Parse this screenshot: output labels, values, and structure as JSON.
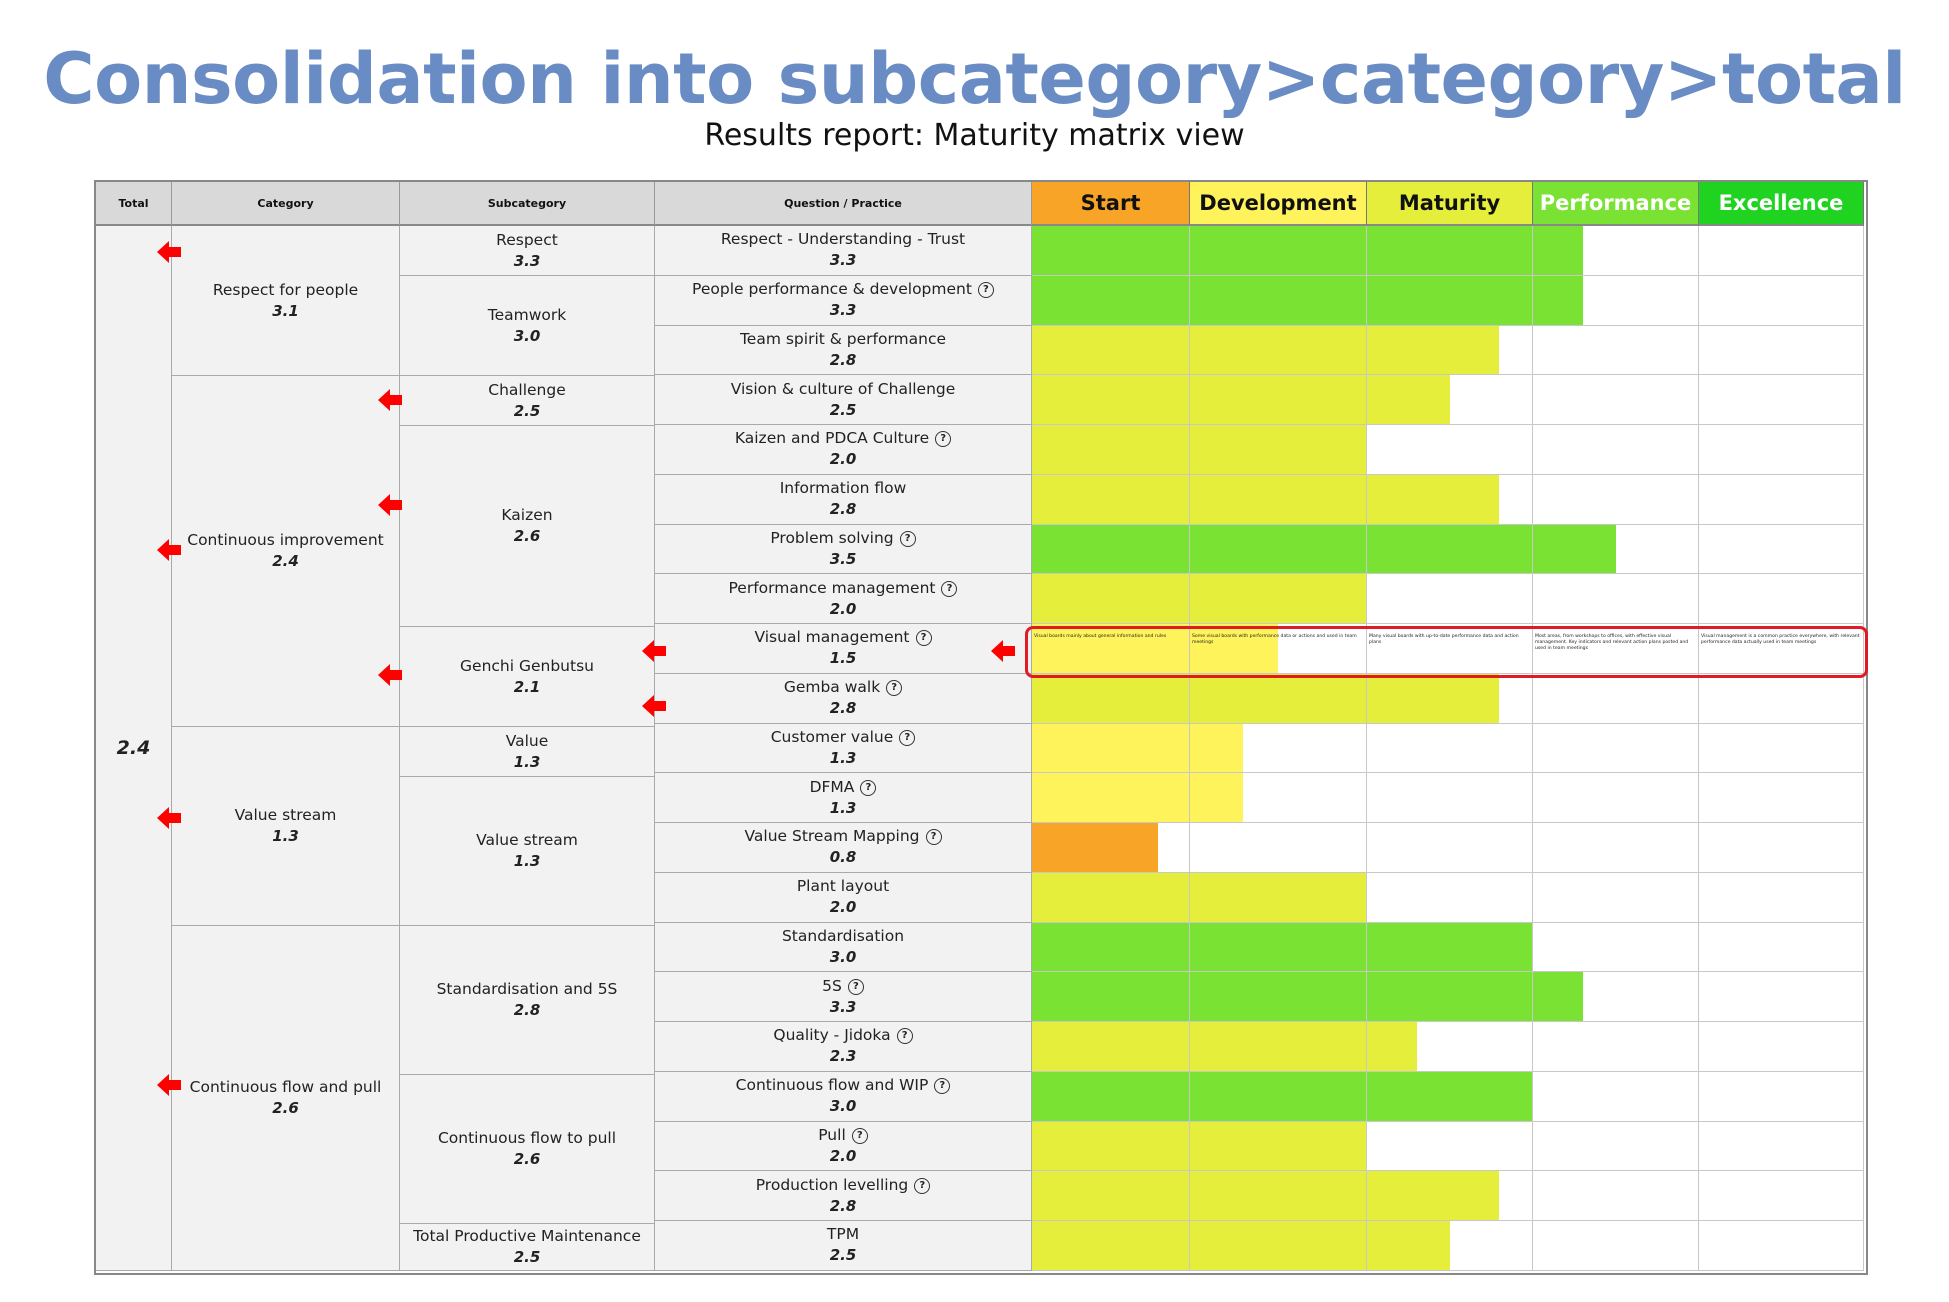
{
  "header": {
    "title": "Consolidation into subcategory>category>total",
    "subtitle": "Results report: Maturity matrix view"
  },
  "table": {
    "columns": {
      "total": "Total",
      "category": "Category",
      "subcategory": "Subcategory",
      "question": "Question / Practice"
    },
    "levels": [
      {
        "label": "Start",
        "color": "#f7a427",
        "text_color": "#111111"
      },
      {
        "label": "Development",
        "color": "#fff35c",
        "text_color": "#111111"
      },
      {
        "label": "Maturity",
        "color": "#e5ef3b",
        "text_color": "#111111"
      },
      {
        "label": "Performance",
        "color": "#79e232",
        "text_color": "#ffffff"
      },
      {
        "label": "Excellence",
        "color": "#20d320",
        "text_color": "#ffffff"
      }
    ],
    "total": {
      "score": "2.4"
    },
    "categories": [
      {
        "name": "Respect for people",
        "score": "3.1"
      },
      {
        "name": "Continuous improvement",
        "score": "2.4"
      },
      {
        "name": "Value stream",
        "score": "1.3"
      },
      {
        "name": "Continuous flow and pull",
        "score": "2.6"
      }
    ],
    "subcategories": [
      {
        "name": "Respect",
        "score": "3.3"
      },
      {
        "name": "Teamwork",
        "score": "3.0"
      },
      {
        "name": "Challenge",
        "score": "2.5"
      },
      {
        "name": "Kaizen",
        "score": "2.6"
      },
      {
        "name": "Genchi Genbutsu",
        "score": "2.1"
      },
      {
        "name": "Value",
        "score": "1.3"
      },
      {
        "name": "Value stream",
        "score": "1.3"
      },
      {
        "name": "Standardisation and 5S",
        "score": "2.8"
      },
      {
        "name": "Continuous flow to pull",
        "score": "2.6"
      },
      {
        "name": "Total Productive Maintenance",
        "score": "2.5"
      }
    ],
    "questions": [
      {
        "name": "Respect - Understanding - Trust",
        "score": "3.3",
        "value": 3.3,
        "info": false
      },
      {
        "name": "People performance & development",
        "score": "3.3",
        "value": 3.3,
        "info": true
      },
      {
        "name": "Team spirit & performance",
        "score": "2.8",
        "value": 2.8,
        "info": false
      },
      {
        "name": "Vision & culture of Challenge",
        "score": "2.5",
        "value": 2.5,
        "info": false
      },
      {
        "name": "Kaizen and PDCA Culture",
        "score": "2.0",
        "value": 2.0,
        "info": true
      },
      {
        "name": "Information flow",
        "score": "2.8",
        "value": 2.8,
        "info": false
      },
      {
        "name": "Problem solving",
        "score": "3.5",
        "value": 3.5,
        "info": true
      },
      {
        "name": "Performance management",
        "score": "2.0",
        "value": 2.0,
        "info": true
      },
      {
        "name": "Visual management",
        "score": "1.5",
        "value": 1.5,
        "info": true
      },
      {
        "name": "Gemba walk",
        "score": "2.8",
        "value": 2.8,
        "info": true
      },
      {
        "name": "Customer value",
        "score": "1.3",
        "value": 1.3,
        "info": true
      },
      {
        "name": "DFMA",
        "score": "1.3",
        "value": 1.3,
        "info": true
      },
      {
        "name": "Value Stream Mapping",
        "score": "0.8",
        "value": 0.8,
        "info": true
      },
      {
        "name": "Plant layout",
        "score": "2.0",
        "value": 2.0,
        "info": false
      },
      {
        "name": "Standardisation",
        "score": "3.0",
        "value": 3.0,
        "info": false
      },
      {
        "name": "5S",
        "score": "3.3",
        "value": 3.3,
        "info": true
      },
      {
        "name": "Quality - Jidoka",
        "score": "2.3",
        "value": 2.3,
        "info": true
      },
      {
        "name": "Continuous flow and WIP",
        "score": "3.0",
        "value": 3.0,
        "info": true
      },
      {
        "name": "Pull",
        "score": "2.0",
        "value": 2.0,
        "info": true
      },
      {
        "name": "Production levelling",
        "score": "2.8",
        "value": 2.8,
        "info": true
      },
      {
        "name": "TPM",
        "score": "2.5",
        "value": 2.5,
        "info": false
      }
    ],
    "visual_management_descriptions": [
      "Visual boards mainly about general information and rules",
      "Some visual boards with performance data or actions and used in team meetings",
      "Many visual boards with up-to-date performance data and action plans",
      "Most areas, from workshops to offices, with effective visual management. Key indicators and relevant action plans posted and used in team meetings",
      "Visual management is a common practice everywhere, with relevant performance data actually used in team meetings"
    ],
    "highlighted_question": "Visual management"
  }
}
